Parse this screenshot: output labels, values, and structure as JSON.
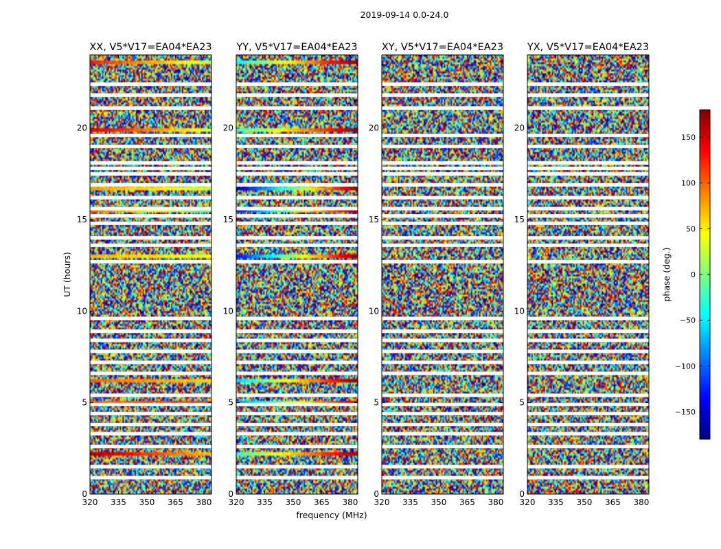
{
  "figure": {
    "suptitle": "2019-09-14 0.0-24.0",
    "ylabel": "UT (hours)",
    "xlabel": "frequency (MHz)"
  },
  "colorbar": {
    "label": "phase (deg.)",
    "range": [
      -180,
      180
    ],
    "ticks": [
      150,
      100,
      50,
      0,
      -50,
      -100,
      -150
    ],
    "tick_labels": [
      "150",
      "100",
      "50",
      "0",
      "−50",
      "−100",
      "−150"
    ],
    "colormap": [
      "#00007f",
      "#0000ff",
      "#007fff",
      "#00ffff",
      "#7fff7f",
      "#ffff00",
      "#ff7f00",
      "#ff0000",
      "#7f0000"
    ]
  },
  "chart_data": {
    "type": "heatmap",
    "title": "2019-09-14 0.0-24.0",
    "xlabel": "frequency (MHz)",
    "ylabel": "UT (hours)",
    "value_label": "phase (deg.)",
    "xlim": [
      320,
      384
    ],
    "ylim": [
      0,
      24
    ],
    "xticks": [
      320,
      335,
      350,
      365,
      380
    ],
    "yticks": [
      0,
      5,
      10,
      15,
      20
    ],
    "clim": [
      -180,
      180
    ],
    "panels": [
      {
        "title": "XX, V5*V17=EA04*EA23"
      },
      {
        "title": "YY, V5*V17=EA04*EA23"
      },
      {
        "title": "XY, V5*V17=EA04*EA23"
      },
      {
        "title": "YX, V5*V17=EA04*EA23"
      }
    ],
    "flagged_ut_hours": [
      0.9,
      1.5,
      2.6,
      3.3,
      3.8,
      4.4,
      4.9,
      5.4,
      6.6,
      7.2,
      7.8,
      8.4,
      8.9,
      9.6,
      12.7,
      13.6,
      14.0,
      14.8,
      15.2,
      15.6,
      16.2,
      16.9,
      17.5,
      17.8,
      18.1,
      19.0,
      19.6,
      21.1,
      21.8,
      22.4
    ],
    "coherent_bands": [
      {
        "ut_hours": 2.2,
        "panels": [
          "XX",
          "YY"
        ],
        "xx_phase": [
          165,
          65
        ],
        "yy_phase": [
          -30,
          170
        ]
      },
      {
        "ut_hours": 5.0,
        "panels": [
          "XX",
          "YY"
        ],
        "xx_phase": [
          100,
          120
        ],
        "yy_phase": [
          -90,
          160
        ]
      },
      {
        "ut_hours": 6.2,
        "panels": [
          "XX",
          "YY"
        ],
        "xx_phase": [
          100,
          60
        ],
        "yy_phase": [
          -60,
          175
        ]
      },
      {
        "ut_hours": 13.0,
        "panels": [
          "XX",
          "YY"
        ],
        "xx_phase": [
          70,
          40
        ],
        "yy_phase": [
          -130,
          175
        ]
      },
      {
        "ut_hours": 15.5,
        "panels": [
          "XX",
          "YY"
        ],
        "xx_phase": [
          95,
          -10
        ],
        "yy_phase": [
          -130,
          170
        ]
      },
      {
        "ut_hours": 16.7,
        "panels": [
          "XX",
          "YY"
        ],
        "xx_phase": [
          80,
          30
        ],
        "yy_phase": [
          -160,
          175
        ]
      },
      {
        "ut_hours": 19.9,
        "panels": [
          "XX",
          "YY"
        ],
        "xx_phase": [
          150,
          25
        ],
        "yy_phase": [
          -30,
          170
        ]
      },
      {
        "ut_hours": 23.6,
        "panels": [
          "XX",
          "YY"
        ],
        "xx_phase": [
          130,
          20
        ],
        "yy_phase": [
          -50,
          175
        ]
      }
    ]
  }
}
